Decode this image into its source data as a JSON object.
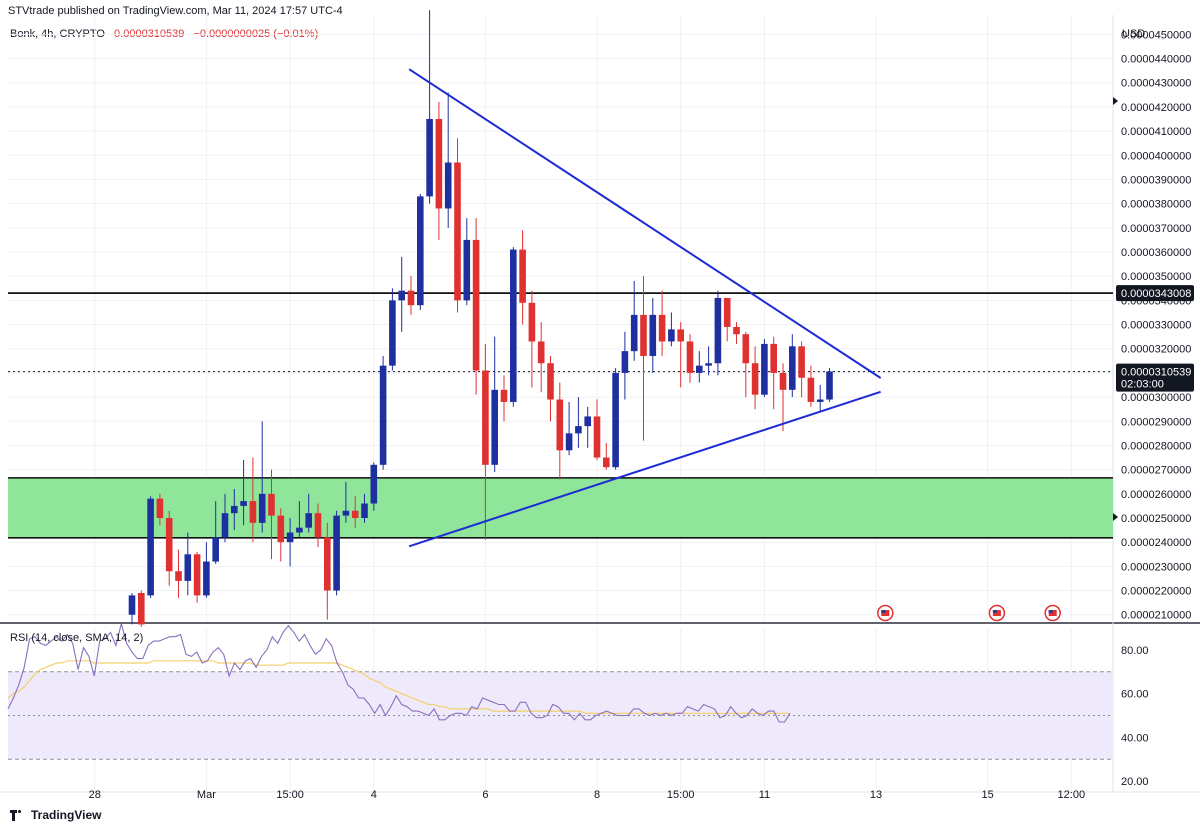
{
  "header": {
    "published": "STVtrade published on TradingView.com, Mar 11, 2024 17:57 UTC-4",
    "symbol": "Bonk, 4h, CRYPTO",
    "price": "0.0000310539",
    "change": "−0.0000000025 (−0.01%)"
  },
  "currency": "USD",
  "colors": {
    "up": "#1e2fa0",
    "down": "#e03131",
    "trendline": "#1c2bd6",
    "zone_fill": "#8fe59a",
    "rsi_line": "#8a6fbf",
    "rsi_ma": "#f2d06b",
    "rsi_band": "#efeafb"
  },
  "rsi_legend": "RSI (14, close, SMA, 14, 2)",
  "footer_brand": "TradingView",
  "chart_data": [
    {
      "type": "candlestick",
      "title": "Bonk, 4h, CRYPTO",
      "y_axis": {
        "min": 2.07e-05,
        "max": 4.58e-05,
        "ticks": [
          "0.0000450000",
          "0.0000440000",
          "0.0000430000",
          "0.0000420000",
          "0.0000410000",
          "0.0000400000",
          "0.0000390000",
          "0.0000380000",
          "0.0000370000",
          "0.0000360000",
          "0.0000350000",
          "0.0000340000",
          "0.0000330000",
          "0.0000320000",
          "0.0000310000",
          "0.0000300000",
          "0.0000290000",
          "0.0000280000",
          "0.0000270000",
          "0.0000260000",
          "0.0000250000",
          "0.0000240000",
          "0.0000230000",
          "0.0000220000",
          "0.0000210000"
        ]
      },
      "x_axis": {
        "ticks": [
          {
            "label": "28",
            "bar": -4
          },
          {
            "label": "Mar",
            "bar": 8
          },
          {
            "label": "15:00",
            "bar": 17
          },
          {
            "label": "4",
            "bar": 26
          },
          {
            "label": "6",
            "bar": 38
          },
          {
            "label": "8",
            "bar": 50
          },
          {
            "label": "15:00",
            "bar": 59
          },
          {
            "label": "11",
            "bar": 68
          },
          {
            "label": "13",
            "bar": 80
          },
          {
            "label": "15",
            "bar": 92
          },
          {
            "label": "12:00",
            "bar": 101
          }
        ]
      },
      "candles": [
        [
          2.1e-05,
          2.18e-05,
          2.06e-05,
          2.19e-05
        ],
        [
          2.19e-05,
          2.06e-05,
          2.05e-05,
          2.2e-05
        ],
        [
          2.18e-05,
          2.58e-05,
          2.17e-05,
          2.59e-05
        ],
        [
          2.58e-05,
          2.5e-05,
          2.47e-05,
          2.6e-05
        ],
        [
          2.5e-05,
          2.28e-05,
          2.22e-05,
          2.53e-05
        ],
        [
          2.28e-05,
          2.24e-05,
          2.17e-05,
          2.37e-05
        ],
        [
          2.24e-05,
          2.35e-05,
          2.18e-05,
          2.44e-05
        ],
        [
          2.35e-05,
          2.18e-05,
          2.15e-05,
          2.36e-05
        ],
        [
          2.18e-05,
          2.32e-05,
          2.17e-05,
          2.4e-05
        ],
        [
          2.32e-05,
          2.42e-05,
          2.31e-05,
          2.57e-05
        ],
        [
          2.42e-05,
          2.52e-05,
          2.4e-05,
          2.6e-05
        ],
        [
          2.52e-05,
          2.55e-05,
          2.45e-05,
          2.62e-05
        ],
        [
          2.55e-05,
          2.57e-05,
          2.47e-05,
          2.74e-05
        ],
        [
          2.57e-05,
          2.48e-05,
          2.4e-05,
          2.75e-05
        ],
        [
          2.48e-05,
          2.6e-05,
          2.44e-05,
          2.9e-05
        ],
        [
          2.6e-05,
          2.51e-05,
          2.33e-05,
          2.7e-05
        ],
        [
          2.51e-05,
          2.4e-05,
          2.32e-05,
          2.54e-05
        ],
        [
          2.4e-05,
          2.44e-05,
          2.3e-05,
          2.5e-05
        ],
        [
          2.44e-05,
          2.46e-05,
          2.42e-05,
          2.57e-05
        ],
        [
          2.46e-05,
          2.52e-05,
          2.44e-05,
          2.6e-05
        ],
        [
          2.52e-05,
          2.42e-05,
          2.38e-05,
          2.56e-05
        ],
        [
          2.42e-05,
          2.2e-05,
          2.08e-05,
          2.48e-05
        ],
        [
          2.2e-05,
          2.51e-05,
          2.18e-05,
          2.53e-05
        ],
        [
          2.51e-05,
          2.53e-05,
          2.48e-05,
          2.65e-05
        ],
        [
          2.53e-05,
          2.5e-05,
          2.46e-05,
          2.59e-05
        ],
        [
          2.5e-05,
          2.56e-05,
          2.48e-05,
          2.6e-05
        ],
        [
          2.56e-05,
          2.72e-05,
          2.53e-05,
          2.73e-05
        ],
        [
          2.72e-05,
          3.13e-05,
          2.7e-05,
          3.17e-05
        ],
        [
          3.13e-05,
          3.4e-05,
          3.11e-05,
          3.45e-05
        ],
        [
          3.4e-05,
          3.44e-05,
          3.27e-05,
          3.58e-05
        ],
        [
          3.44e-05,
          3.38e-05,
          3.34e-05,
          3.5e-05
        ],
        [
          3.38e-05,
          3.83e-05,
          3.36e-05,
          3.84e-05
        ],
        [
          3.83e-05,
          4.15e-05,
          3.8e-05,
          4.6e-05
        ],
        [
          4.15e-05,
          3.78e-05,
          3.65e-05,
          4.22e-05
        ],
        [
          3.78e-05,
          3.97e-05,
          3.7e-05,
          4.26e-05
        ],
        [
          3.97e-05,
          3.4e-05,
          3.35e-05,
          4.07e-05
        ],
        [
          3.4e-05,
          3.65e-05,
          3.38e-05,
          3.74e-05
        ],
        [
          3.65e-05,
          3.11e-05,
          3.01e-05,
          3.74e-05
        ],
        [
          3.11e-05,
          2.72e-05,
          2.41e-05,
          3.22e-05
        ],
        [
          2.72e-05,
          3.03e-05,
          2.69e-05,
          3.25e-05
        ],
        [
          3.03e-05,
          2.98e-05,
          2.9e-05,
          3.09e-05
        ],
        [
          2.98e-05,
          3.61e-05,
          2.96e-05,
          3.62e-05
        ],
        [
          3.61e-05,
          3.39e-05,
          3.3e-05,
          3.69e-05
        ],
        [
          3.39e-05,
          3.23e-05,
          3.04e-05,
          3.44e-05
        ],
        [
          3.23e-05,
          3.14e-05,
          3.02e-05,
          3.31e-05
        ],
        [
          3.14e-05,
          2.99e-05,
          2.9e-05,
          3.17e-05
        ],
        [
          2.99e-05,
          2.78e-05,
          2.66e-05,
          3.06e-05
        ],
        [
          2.78e-05,
          2.85e-05,
          2.76e-05,
          2.98e-05
        ],
        [
          2.85e-05,
          2.88e-05,
          2.79e-05,
          3e-05
        ],
        [
          2.88e-05,
          2.92e-05,
          2.79e-05,
          2.96e-05
        ],
        [
          2.92e-05,
          2.75e-05,
          2.74e-05,
          2.99e-05
        ],
        [
          2.75e-05,
          2.71e-05,
          2.7e-05,
          2.81e-05
        ],
        [
          2.71e-05,
          3.1e-05,
          2.7e-05,
          3.12e-05
        ],
        [
          3.1e-05,
          3.19e-05,
          2.99e-05,
          3.27e-05
        ],
        [
          3.19e-05,
          3.34e-05,
          3.15e-05,
          3.48e-05
        ],
        [
          3.34e-05,
          3.17e-05,
          2.82e-05,
          3.5e-05
        ],
        [
          3.17e-05,
          3.34e-05,
          3.1e-05,
          3.41e-05
        ],
        [
          3.34e-05,
          3.23e-05,
          3.17e-05,
          3.44e-05
        ],
        [
          3.23e-05,
          3.28e-05,
          3.21e-05,
          3.35e-05
        ],
        [
          3.28e-05,
          3.23e-05,
          3.04e-05,
          3.31e-05
        ],
        [
          3.23e-05,
          3.1e-05,
          3.06e-05,
          3.26e-05
        ],
        [
          3.1e-05,
          3.13e-05,
          3.06e-05,
          3.19e-05
        ],
        [
          3.13e-05,
          3.14e-05,
          3.09e-05,
          3.21e-05
        ],
        [
          3.14e-05,
          3.41e-05,
          3.09e-05,
          3.44e-05
        ],
        [
          3.41e-05,
          3.29e-05,
          3.23e-05,
          3.4e-05
        ],
        [
          3.29e-05,
          3.26e-05,
          3.22e-05,
          3.31e-05
        ],
        [
          3.26e-05,
          3.14e-05,
          3e-05,
          3.27e-05
        ],
        [
          3.14e-05,
          3.01e-05,
          2.95e-05,
          3.21e-05
        ],
        [
          3.01e-05,
          3.22e-05,
          3e-05,
          3.24e-05
        ],
        [
          3.22e-05,
          3.1e-05,
          2.95e-05,
          3.25e-05
        ],
        [
          3.1e-05,
          3.03e-05,
          2.86e-05,
          3.14e-05
        ],
        [
          3.03e-05,
          3.21e-05,
          3e-05,
          3.26e-05
        ],
        [
          3.21e-05,
          3.08e-05,
          3e-05,
          3.23e-05
        ],
        [
          3.08e-05,
          2.98e-05,
          2.96e-05,
          3.13e-05
        ],
        [
          2.98e-05,
          2.99e-05,
          2.94e-05,
          3.05e-05
        ],
        [
          2.99e-05,
          3.106e-05,
          2.98e-05,
          3.12e-05
        ]
      ],
      "horizontal_lines": [
        {
          "price": 3.43008e-05,
          "label": "0.0000343008",
          "style": "solid"
        },
        {
          "price": 3.10539e-05,
          "label": "0.0000310539",
          "sublabel": "02:03:00",
          "style": "dotted"
        }
      ],
      "zone": {
        "from": 2.418e-05,
        "to": 2.666e-05
      },
      "trendlines": [
        {
          "from": {
            "bar": 29.8,
            "price": 4.356e-05
          },
          "to": {
            "bar": 80.5,
            "price": 3.079e-05
          }
        },
        {
          "from": {
            "bar": 29.8,
            "price": 2.383e-05
          },
          "to": {
            "bar": 80.5,
            "price": 3.022e-05
          }
        }
      ],
      "event_markers": [
        {
          "bar": 81
        },
        {
          "bar": 93
        },
        {
          "bar": 99
        }
      ]
    },
    {
      "type": "line",
      "title": "RSI (14, close, SMA, 14, 2)",
      "y_axis": {
        "min": 15,
        "max": 90,
        "ticks": [
          "80.00",
          "60.00",
          "40.00",
          "20.00"
        ]
      },
      "bands": {
        "upper": 70,
        "middle": 50,
        "lower": 30
      },
      "series": [
        {
          "values": [
            53,
            58,
            64,
            72,
            85,
            86,
            83,
            82,
            84,
            86,
            84,
            87,
            83,
            71,
            81,
            77,
            68,
            84,
            85,
            88,
            82,
            92,
            83,
            79,
            76,
            76,
            82,
            84,
            84,
            85,
            86,
            86,
            87,
            78,
            77,
            79,
            74,
            75,
            79,
            81,
            78,
            68,
            74,
            71,
            75,
            76,
            72,
            77,
            80,
            86,
            83,
            88,
            91,
            88,
            84,
            87,
            82,
            78,
            80,
            85,
            82,
            74,
            70,
            64,
            62,
            58,
            58,
            55,
            51,
            55,
            50,
            54,
            59,
            55,
            54,
            52,
            52,
            51,
            50,
            53,
            48,
            48,
            50,
            51,
            51,
            50,
            54,
            53,
            58,
            57,
            56,
            55,
            55,
            52,
            52,
            56,
            56,
            51,
            49,
            49,
            50,
            55,
            54,
            51,
            51,
            48,
            51,
            48,
            48,
            50,
            51,
            52,
            51,
            50,
            50,
            50,
            53,
            53,
            51,
            50,
            51,
            50,
            51,
            50,
            51,
            51,
            54,
            53,
            52,
            55,
            54,
            53,
            49,
            50,
            54,
            51,
            49,
            50,
            53,
            51,
            50,
            52,
            52,
            47,
            47,
            51
          ]
        },
        {
          "values": [
            58,
            60,
            61,
            63,
            66,
            69,
            71,
            72,
            73,
            74,
            74,
            75,
            75,
            75,
            75,
            75,
            74,
            74,
            74,
            74,
            74,
            74,
            74,
            74,
            74,
            74,
            74,
            75,
            75,
            75,
            75,
            75,
            75,
            75,
            75,
            75,
            75,
            75,
            75,
            74,
            74,
            74,
            74,
            74,
            74,
            74,
            73,
            73,
            73,
            73,
            73,
            73,
            74,
            74,
            74,
            74,
            74,
            74,
            74,
            74,
            74,
            74,
            73,
            72,
            71,
            70,
            69,
            67,
            66,
            65,
            63,
            62,
            61,
            60,
            59,
            58,
            57,
            56,
            55,
            55,
            54,
            54,
            53,
            53,
            53,
            53,
            53,
            53,
            53,
            53,
            52,
            52,
            52,
            52,
            52,
            52,
            52,
            52,
            52,
            52,
            52,
            52,
            52,
            52,
            52,
            52,
            52,
            51,
            51,
            51,
            51,
            51,
            51,
            51,
            51,
            51,
            51,
            51,
            51,
            51,
            51,
            51,
            51,
            51,
            51,
            51,
            51,
            51,
            51,
            51,
            51,
            51,
            51,
            51,
            51,
            51,
            51,
            51,
            51,
            51,
            51,
            51,
            51,
            51,
            51,
            51
          ]
        }
      ]
    }
  ]
}
